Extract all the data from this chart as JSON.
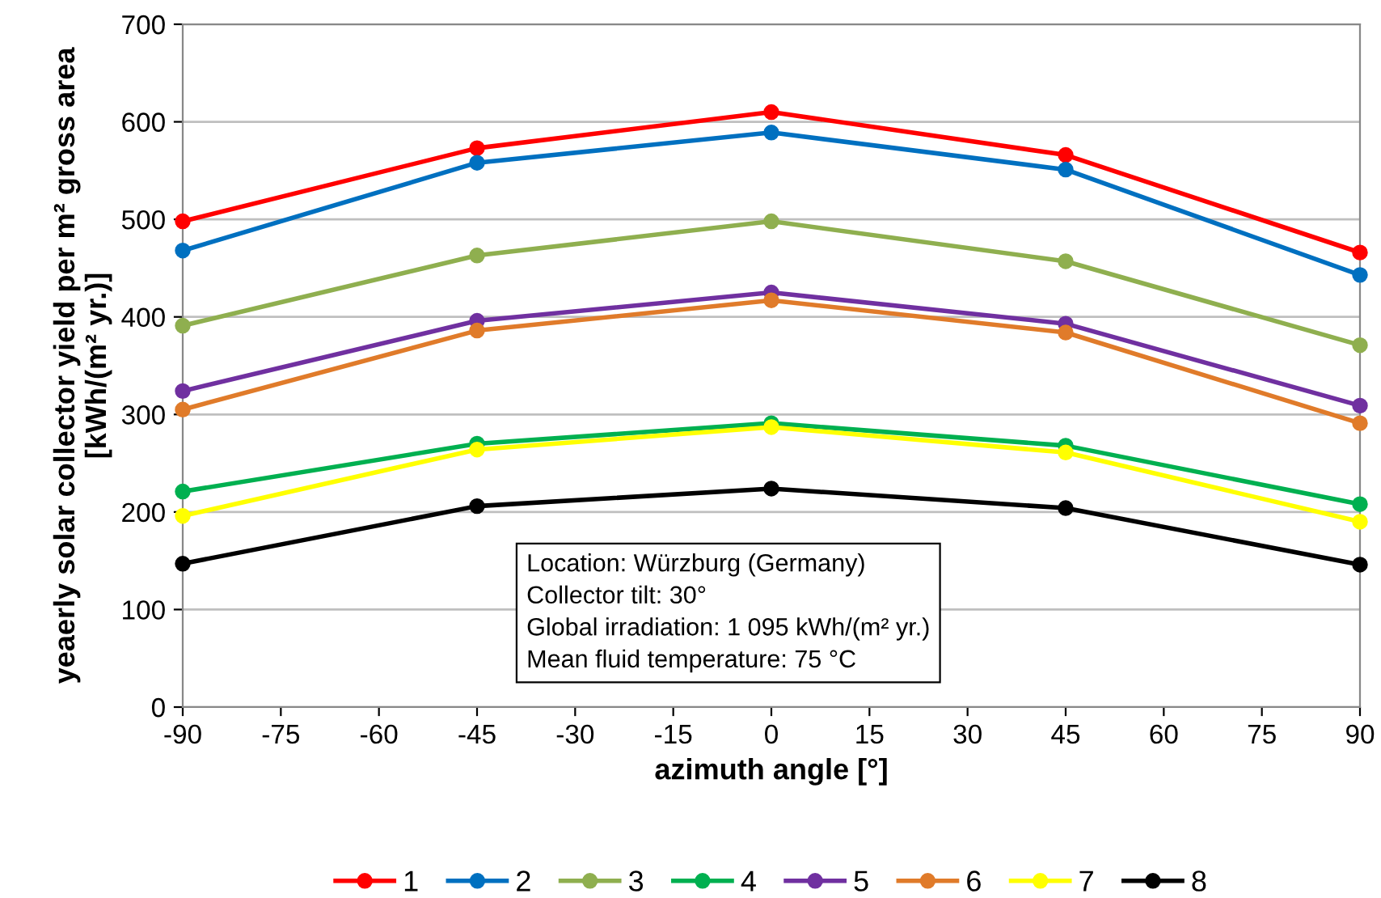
{
  "chart_data": {
    "type": "line",
    "xlabel": "azimuth angle [°]",
    "ylabel": "yeaerly solar collector yield per m² gross area\n[kWh/(m² yr.)]",
    "x": [
      -90,
      -45,
      0,
      45,
      90
    ],
    "series": [
      {
        "name": "1",
        "color": "#ff0000",
        "values": [
          498,
          573,
          610,
          566,
          466
        ]
      },
      {
        "name": "2",
        "color": "#0070c0",
        "values": [
          468,
          558,
          589,
          551,
          443
        ]
      },
      {
        "name": "3",
        "color": "#8faf4f",
        "values": [
          391,
          463,
          498,
          457,
          371
        ]
      },
      {
        "name": "4",
        "color": "#00b050",
        "values": [
          221,
          270,
          291,
          268,
          208
        ]
      },
      {
        "name": "5",
        "color": "#7030a0",
        "values": [
          324,
          396,
          425,
          393,
          309
        ]
      },
      {
        "name": "6",
        "color": "#e07b2a",
        "values": [
          305,
          386,
          417,
          384,
          291
        ]
      },
      {
        "name": "7",
        "color": "#ffff00",
        "values": [
          196,
          264,
          287,
          261,
          190
        ]
      },
      {
        "name": "8",
        "color": "#000000",
        "values": [
          147,
          206,
          224,
          204,
          146
        ]
      }
    ],
    "xlim": [
      -90,
      90
    ],
    "xticks": [
      -90,
      -75,
      -60,
      -45,
      -30,
      -15,
      0,
      15,
      30,
      45,
      60,
      75,
      90
    ],
    "ylim": [
      0,
      700
    ],
    "yticks": [
      0,
      100,
      200,
      300,
      400,
      500,
      600,
      700
    ],
    "grid": "y",
    "legend": "bottom",
    "marker": "circle",
    "line_style": "solid",
    "annotations": [
      "Location: Würzburg (Germany)\nCollector tilt: 30°\nGlobal irradiation: 1 095 kWh/(m² yr.)\nMean fluid temperature: 75 °C"
    ]
  }
}
